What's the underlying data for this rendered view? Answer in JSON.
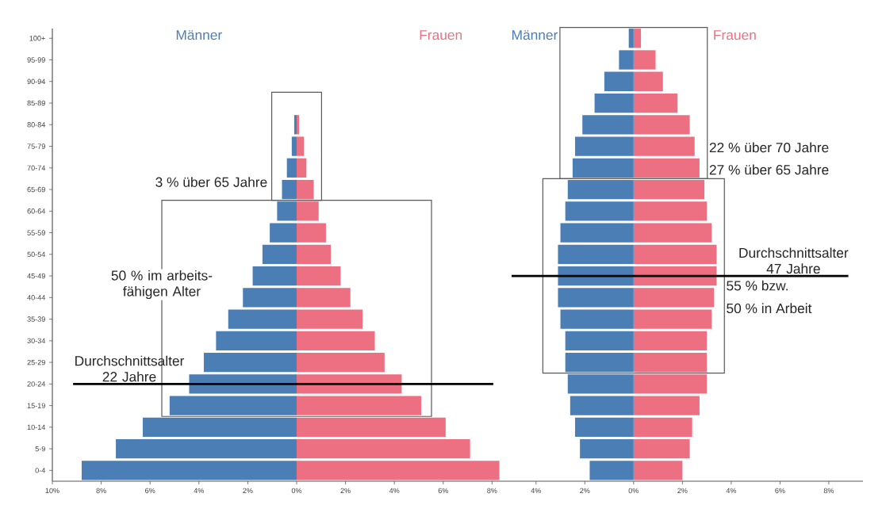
{
  "chart_data": [
    {
      "type": "bar",
      "orientation": "horizontal",
      "stacked": true,
      "categories": [
        "100+",
        "95-99",
        "90-94",
        "85-89",
        "80-84",
        "75-79",
        "70-74",
        "65-69",
        "60-64",
        "55-59",
        "50-54",
        "45-49",
        "40-44",
        "35-39",
        "30-34",
        "25-29",
        "20-24",
        "15-19",
        "10-14",
        "5-9",
        "0-4"
      ],
      "series": [
        {
          "name": "Männer",
          "color": "#4a7eb5",
          "values": [
            0,
            0,
            0,
            0,
            -0.1,
            -0.2,
            -0.4,
            -0.6,
            -0.8,
            -1.1,
            -1.4,
            -1.8,
            -2.2,
            -2.8,
            -3.3,
            -3.8,
            -4.4,
            -5.2,
            -6.3,
            -7.4,
            -8.8
          ]
        },
        {
          "name": "Frauen",
          "color": "#ec7082",
          "values": [
            0,
            0,
            0,
            0,
            0.1,
            0.3,
            0.4,
            0.7,
            0.9,
            1.2,
            1.4,
            1.8,
            2.2,
            2.7,
            3.2,
            3.6,
            4.3,
            5.1,
            6.1,
            7.1,
            8.3
          ]
        }
      ],
      "xlim": [
        -10,
        8.8
      ],
      "xticks": [
        {
          "value": -10,
          "label": "10%"
        },
        {
          "value": -8,
          "label": "8%"
        },
        {
          "value": -6,
          "label": "6%"
        },
        {
          "value": -4,
          "label": "4%"
        },
        {
          "value": -2,
          "label": "2%"
        },
        {
          "value": 0,
          "label": "0%"
        },
        {
          "value": 2,
          "label": "2%"
        },
        {
          "value": 4,
          "label": "4%"
        },
        {
          "value": 6,
          "label": "6%"
        },
        {
          "value": 8,
          "label": "8%"
        }
      ],
      "ref_lines": [
        {
          "axis": "y",
          "value": "20-24",
          "label": "Durchschnittsalter 22 Jahre",
          "color": "#000000"
        }
      ],
      "annotations": [
        "3 % über 65 Jahre",
        "50 % im arbeits- fähigen Alter"
      ]
    },
    {
      "type": "bar",
      "orientation": "horizontal",
      "stacked": true,
      "tick_labels": "x",
      "categories": [
        "100+",
        "95-99",
        "90-94",
        "85-89",
        "80-84",
        "75-79",
        "70-74",
        "65-69",
        "60-64",
        "55-59",
        "50-54",
        "45-49",
        "40-44",
        "35-39",
        "30-34",
        "25-29",
        "20-24",
        "15-19",
        "10-14",
        "5-9",
        "0-4"
      ],
      "series": [
        {
          "name": "Männer",
          "color": "#4a7eb5",
          "values": [
            -0.2,
            -0.6,
            -1.2,
            -1.6,
            -2.1,
            -2.4,
            -2.5,
            -2.7,
            -2.8,
            -3.0,
            -3.1,
            -3.1,
            -3.1,
            -3.0,
            -2.8,
            -2.8,
            -2.7,
            -2.6,
            -2.4,
            -2.2,
            -1.8
          ]
        },
        {
          "name": "Frauen",
          "color": "#ec7082",
          "values": [
            0.3,
            0.9,
            1.2,
            1.8,
            2.3,
            2.5,
            2.7,
            2.9,
            3.0,
            3.2,
            3.4,
            3.4,
            3.3,
            3.2,
            3.0,
            3.0,
            3.0,
            2.7,
            2.4,
            2.3,
            2.0
          ]
        }
      ],
      "xlim": [
        -5,
        9.4
      ],
      "xticks": [
        {
          "value": -4,
          "label": "4%"
        },
        {
          "value": -2,
          "label": "2%"
        },
        {
          "value": 0,
          "label": "0%"
        },
        {
          "value": 2,
          "label": "2%"
        },
        {
          "value": 4,
          "label": "4%"
        },
        {
          "value": 6,
          "label": "6%"
        },
        {
          "value": 8,
          "label": "8%"
        }
      ],
      "ref_lines": [
        {
          "axis": "y",
          "value": "45-49",
          "label": "Durchschnittsalter 47 Jahre",
          "color": "#000000"
        }
      ],
      "annotations": [
        "22 % über 70 Jahre",
        "27 % über 65 Jahre",
        "55 % bzw.",
        "50 % in Arbeit"
      ]
    }
  ]
}
